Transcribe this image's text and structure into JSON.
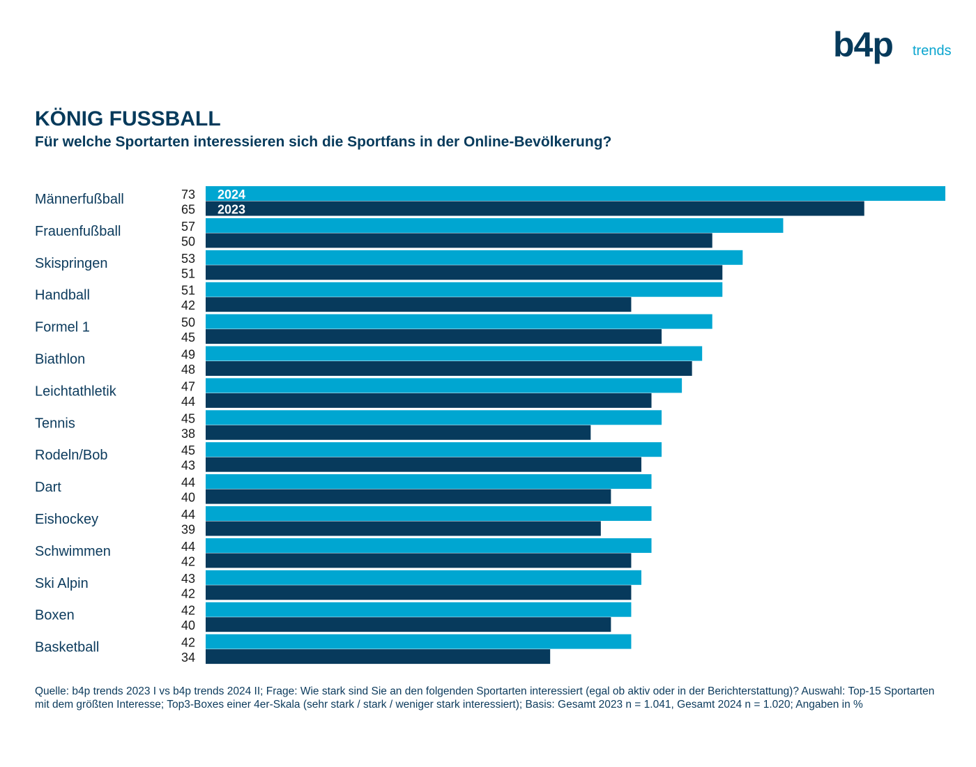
{
  "logo": {
    "brand": "b4p",
    "suffix": "trends"
  },
  "colors": {
    "series2024": "#00a6d1",
    "series2023": "#073a5c",
    "text": "#0b3a5c"
  },
  "footnote": "Quelle: b4p trends 2023 I vs b4p trends 2024 II; Frage: Wie stark sind Sie an den folgenden Sportarten interessiert (egal ob aktiv oder in der Berichterstattung)? Auswahl: Top-15 Sportarten mit dem größten Interesse; Top3-Boxes einer 4er-Skala (sehr stark / stark / weniger stark interessiert); Basis: Gesamt 2023 n = 1.041, Gesamt 2024 n = 1.020; Angaben in %",
  "chart_data": {
    "type": "bar",
    "orientation": "horizontal",
    "title": "KÖNIG FUSSBALL",
    "subtitle": "Für welche Sportarten interessieren sich die Sportfans in der Online-Bevölkerung?",
    "categories": [
      "Männerfußball",
      "Frauenfußball",
      "Skispringen",
      "Handball",
      "Formel 1",
      "Biathlon",
      "Leichtathletik",
      "Tennis",
      "Rodeln/Bob",
      "Dart",
      "Eishockey",
      "Schwimmen",
      "Ski Alpin",
      "Boxen",
      "Basketball"
    ],
    "series": [
      {
        "name": "2024",
        "values": [
          73,
          57,
          53,
          51,
          50,
          49,
          47,
          45,
          45,
          44,
          44,
          44,
          43,
          42,
          42
        ]
      },
      {
        "name": "2023",
        "values": [
          65,
          50,
          51,
          42,
          45,
          48,
          44,
          38,
          43,
          40,
          39,
          42,
          42,
          40,
          34
        ]
      }
    ],
    "xlim": [
      0,
      73
    ],
    "grid": false,
    "legend": "inside-first-bars"
  }
}
